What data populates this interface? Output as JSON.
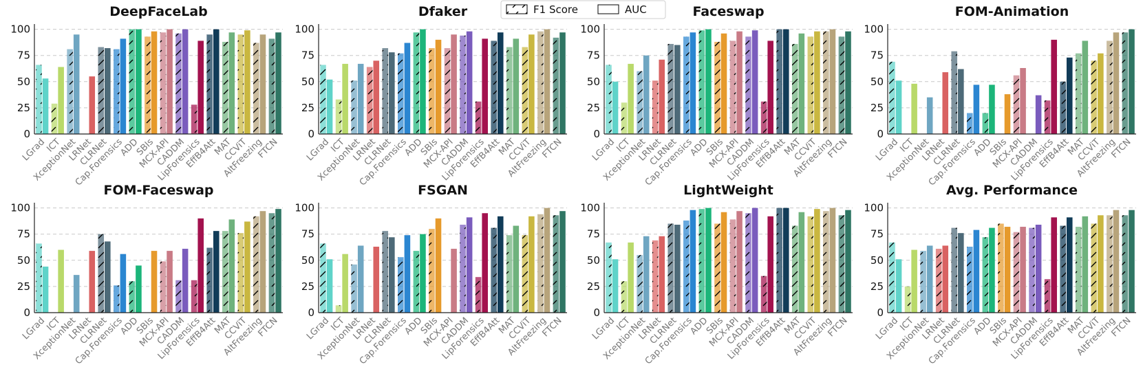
{
  "legend": {
    "f1_label": "F1 Score",
    "auc_label": "AUC"
  },
  "colors": {
    "LGrad": "#5fd3c9",
    "ICT": "#b9d96a",
    "XceptionNet": "#6fa6c2",
    "LRNet": "#d96262",
    "CLRNet": "#4d6a78",
    "Cap.Forensics": "#2b86d1",
    "ADD": "#1cb57a",
    "SBIs": "#e69a2c",
    "MCX-API": "#c97b86",
    "CADDM": "#7a5cbd",
    "LipForensics": "#a3124e",
    "EffB4Att": "#113c58",
    "MAT": "#6fb27d",
    "CCViT": "#c9b740",
    "AltFreezing": "#b7a47b",
    "FTCN": "#2f7664"
  },
  "chart_data": [
    {
      "type": "bar",
      "title": "DeepFaceLab",
      "ylim": [
        0,
        105
      ],
      "yticks": [
        "0",
        "25",
        "50",
        "75",
        "100"
      ],
      "categories": [
        "LGrad",
        "ICT",
        "XceptionNet",
        "LRNet",
        "CLRNet",
        "Cap.Forensics",
        "ADD",
        "SBIs",
        "MCX-API",
        "CADDM",
        "LipForensics",
        "EffB4Att",
        "MAT",
        "CCViT",
        "AltFreezing",
        "FTCN"
      ],
      "series": [
        {
          "name": "F1 Score",
          "values": [
            66,
            29,
            81,
            0,
            83,
            81,
            100,
            93,
            97,
            96,
            28,
            95,
            88,
            95,
            87,
            91
          ]
        },
        {
          "name": "AUC",
          "values": [
            53,
            64,
            95,
            55,
            82,
            91,
            100,
            98,
            100,
            100,
            89,
            100,
            97,
            99,
            95,
            97
          ]
        }
      ]
    },
    {
      "type": "bar",
      "title": "Dfaker",
      "ylim": [
        0,
        105
      ],
      "yticks": [
        "0",
        "25",
        "50",
        "75",
        "100"
      ],
      "categories": [
        "LGrad",
        "ICT",
        "XceptionNet",
        "LRNet",
        "CLRNet",
        "Cap.Forensics",
        "ADD",
        "SBIs",
        "MCX-API",
        "CADDM",
        "LipForensics",
        "EffB4Att",
        "MAT",
        "CCViT",
        "AltFreezing",
        "FTCN"
      ],
      "series": [
        {
          "name": "F1 Score",
          "values": [
            66,
            33,
            51,
            64,
            82,
            77,
            97,
            82,
            82,
            94,
            31,
            89,
            83,
            83,
            98,
            92
          ]
        },
        {
          "name": "AUC",
          "values": [
            52,
            67,
            67,
            70,
            78,
            87,
            100,
            90,
            95,
            98,
            91,
            97,
            91,
            95,
            100,
            97
          ]
        }
      ]
    },
    {
      "type": "bar",
      "title": "Faceswap",
      "ylim": [
        0,
        105
      ],
      "yticks": [
        "0",
        "25",
        "50",
        "75",
        "100"
      ],
      "categories": [
        "LGrad",
        "ICT",
        "XceptionNet",
        "LRNet",
        "CLRNet",
        "Cap.Forensics",
        "ADD",
        "SBIs",
        "MCX-API",
        "CADDM",
        "LipForensics",
        "EffB4Att",
        "MAT",
        "CCViT",
        "AltFreezing",
        "FTCN"
      ],
      "series": [
        {
          "name": "F1 Score",
          "values": [
            66,
            30,
            60,
            51,
            86,
            93,
            99,
            88,
            89,
            93,
            31,
            100,
            86,
            93,
            98,
            93
          ]
        },
        {
          "name": "AUC",
          "values": [
            50,
            67,
            75,
            71,
            85,
            97,
            100,
            96,
            98,
            99,
            89,
            100,
            96,
            98,
            100,
            98
          ]
        }
      ]
    },
    {
      "type": "bar",
      "title": "FOM-Animation",
      "ylim": [
        0,
        105
      ],
      "yticks": [
        "0",
        "25",
        "50",
        "75",
        "100"
      ],
      "categories": [
        "LGrad",
        "ICT",
        "XceptionNet",
        "LRNet",
        "CLRNet",
        "Cap.Forensics",
        "ADD",
        "SBIs",
        "MCX-API",
        "CADDM",
        "LipForensics",
        "EffB4Att",
        "MAT",
        "CCViT",
        "AltFreezing",
        "FTCN"
      ],
      "series": [
        {
          "name": "F1 Score",
          "values": [
            69,
            0,
            0,
            0,
            79,
            20,
            20,
            0,
            56,
            0,
            32,
            50,
            77,
            70,
            89,
            97
          ]
        },
        {
          "name": "AUC",
          "values": [
            51,
            48,
            35,
            59,
            62,
            47,
            47,
            38,
            63,
            37,
            90,
            73,
            89,
            77,
            97,
            100
          ]
        }
      ]
    },
    {
      "type": "bar",
      "title": "FOM-Faceswap",
      "ylim": [
        0,
        105
      ],
      "yticks": [
        "0",
        "25",
        "50",
        "75",
        "100"
      ],
      "categories": [
        "LGrad",
        "ICT",
        "XceptionNet",
        "LRNet",
        "CLRNet",
        "Cap.Forensics",
        "ADD",
        "SBIs",
        "MCX-API",
        "CADDM",
        "LipForensics",
        "EffB4Att",
        "MAT",
        "CCViT",
        "AltFreezing",
        "FTCN"
      ],
      "series": [
        {
          "name": "F1 Score",
          "values": [
            66,
            0,
            0,
            0,
            75,
            26,
            30,
            0,
            49,
            31,
            31,
            62,
            78,
            76,
            92,
            95
          ]
        },
        {
          "name": "AUC",
          "values": [
            44,
            60,
            36,
            59,
            68,
            56,
            45,
            59,
            59,
            61,
            90,
            78,
            89,
            87,
            97,
            99
          ]
        }
      ]
    },
    {
      "type": "bar",
      "title": "FSGAN",
      "ylim": [
        0,
        105
      ],
      "yticks": [
        "0",
        "25",
        "50",
        "75",
        "100"
      ],
      "categories": [
        "LGrad",
        "ICT",
        "XceptionNet",
        "LRNet",
        "CLRNet",
        "Cap.Forensics",
        "ADD",
        "SBIs",
        "MCX-API",
        "CADDM",
        "LipForensics",
        "EffB4Att",
        "MAT",
        "CCViT",
        "AltFreezing",
        "FTCN"
      ],
      "series": [
        {
          "name": "F1 Score",
          "values": [
            66,
            7,
            46,
            0,
            78,
            53,
            59,
            80,
            0,
            84,
            34,
            81,
            74,
            74,
            94,
            93
          ]
        },
        {
          "name": "AUC",
          "values": [
            51,
            56,
            64,
            63,
            72,
            74,
            75,
            90,
            61,
            91,
            95,
            92,
            83,
            92,
            100,
            97
          ]
        }
      ]
    },
    {
      "type": "bar",
      "title": "LightWeight",
      "ylim": [
        0,
        105
      ],
      "yticks": [
        "0",
        "25",
        "50",
        "75",
        "100"
      ],
      "categories": [
        "LGrad",
        "ICT",
        "XceptionNet",
        "LRNet",
        "CLRNet",
        "Cap.Forensics",
        "ADD",
        "SBIs",
        "MCX-API",
        "CADDM",
        "LipForensics",
        "EffB4Att",
        "MAT",
        "CCViT",
        "AltFreezing",
        "FTCN"
      ],
      "series": [
        {
          "name": "F1 Score",
          "values": [
            67,
            30,
            55,
            69,
            85,
            88,
            99,
            85,
            89,
            95,
            35,
            100,
            83,
            92,
            97,
            93
          ]
        },
        {
          "name": "AUC",
          "values": [
            51,
            67,
            73,
            73,
            84,
            98,
            100,
            96,
            97,
            100,
            92,
            100,
            96,
            99,
            100,
            98
          ]
        }
      ]
    },
    {
      "type": "bar",
      "title": "Avg. Performance",
      "ylim": [
        0,
        105
      ],
      "yticks": [
        "0",
        "25",
        "50",
        "75",
        "100"
      ],
      "categories": [
        "LGrad",
        "ICT",
        "XceptionNet",
        "LRNet",
        "CLRNet",
        "Cap.Forensics",
        "ADD",
        "SBIs",
        "MCX-API",
        "CADDM",
        "LipForensics",
        "EffB4Att",
        "MAT",
        "CCViT",
        "AltFreezing",
        "FTCN"
      ],
      "series": [
        {
          "name": "F1 Score",
          "values": [
            67,
            25,
            59,
            61,
            81,
            63,
            72,
            85,
            77,
            81,
            32,
            83,
            82,
            85,
            93,
            93
          ]
        },
        {
          "name": "AUC",
          "values": [
            51,
            60,
            64,
            64,
            76,
            79,
            81,
            82,
            82,
            84,
            91,
            91,
            92,
            93,
            98,
            98
          ]
        }
      ]
    }
  ]
}
